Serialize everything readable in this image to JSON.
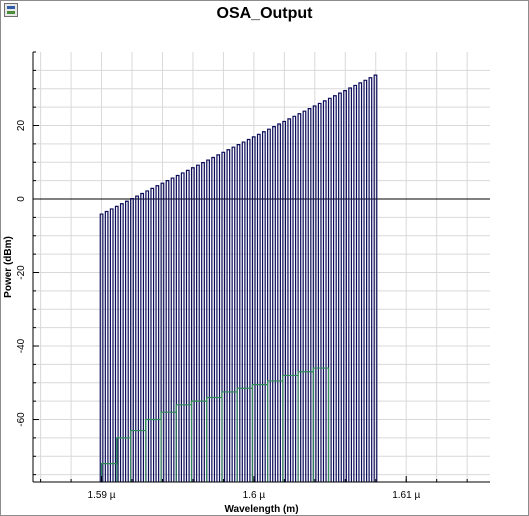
{
  "window": {
    "title": "OSA_Output",
    "icon": "window-app-icon"
  },
  "chart_data": {
    "type": "bar",
    "title": "OSA_Output",
    "xlabel": "Wavelength (m)",
    "ylabel": "Power (dBm)",
    "xlim": [
      1.5855,
      1.6155
    ],
    "ylim": [
      -77,
      40
    ],
    "x_ticks": [
      {
        "value": 1.59,
        "label": "1.59 µ"
      },
      {
        "value": 1.6,
        "label": "1.6 µ"
      },
      {
        "value": 1.61,
        "label": "1.61 µ"
      }
    ],
    "y_ticks": [
      {
        "value": 20,
        "label": "20"
      },
      {
        "value": 0,
        "label": "0"
      },
      {
        "value": -20,
        "label": "-20"
      },
      {
        "value": -40,
        "label": "-40"
      },
      {
        "value": -60,
        "label": "-60"
      }
    ],
    "grid": true,
    "series": [
      {
        "color": "#0b0b5a",
        "x_start": 1.59,
        "x_step": 0.000333,
        "count": 55,
        "values": [
          -4.1,
          -3.4,
          -2.7,
          -2.0,
          -1.3,
          -0.6,
          0.1,
          0.8,
          1.5,
          2.2,
          2.9,
          3.6,
          4.3,
          5.0,
          5.7,
          6.4,
          7.1,
          7.8,
          8.5,
          9.2,
          9.9,
          10.6,
          11.3,
          12.0,
          12.7,
          13.4,
          14.1,
          14.8,
          15.5,
          16.2,
          16.9,
          17.6,
          18.3,
          19.0,
          19.7,
          20.4,
          21.1,
          21.8,
          22.5,
          23.2,
          23.9,
          24.6,
          25.3,
          26.0,
          26.7,
          27.4,
          28.1,
          28.8,
          29.5,
          30.2,
          30.9,
          31.6,
          32.3,
          33.0,
          33.7
        ],
        "bar_width": 0.00017
      },
      {
        "color": "#2e8b57",
        "steps": [
          {
            "x0": 1.59,
            "x1": 1.591,
            "value": -72
          },
          {
            "x0": 1.591,
            "x1": 1.5919,
            "value": -65
          },
          {
            "x0": 1.5919,
            "x1": 1.5929,
            "value": -63
          },
          {
            "x0": 1.5929,
            "x1": 1.5939,
            "value": -60
          },
          {
            "x0": 1.5939,
            "x1": 1.5949,
            "value": -58
          },
          {
            "x0": 1.5949,
            "x1": 1.5959,
            "value": -56
          },
          {
            "x0": 1.5959,
            "x1": 1.5969,
            "value": -55
          },
          {
            "x0": 1.5969,
            "x1": 1.5979,
            "value": -54
          },
          {
            "x0": 1.5979,
            "x1": 1.5989,
            "value": -52.5
          },
          {
            "x0": 1.5989,
            "x1": 1.5999,
            "value": -51.5
          },
          {
            "x0": 1.5999,
            "x1": 1.6009,
            "value": -50.5
          },
          {
            "x0": 1.6009,
            "x1": 1.6019,
            "value": -49.5
          },
          {
            "x0": 1.6019,
            "x1": 1.6029,
            "value": -48
          },
          {
            "x0": 1.6029,
            "x1": 1.6039,
            "value": -47
          },
          {
            "x0": 1.6039,
            "x1": 1.6049,
            "value": -46
          }
        ]
      }
    ]
  }
}
